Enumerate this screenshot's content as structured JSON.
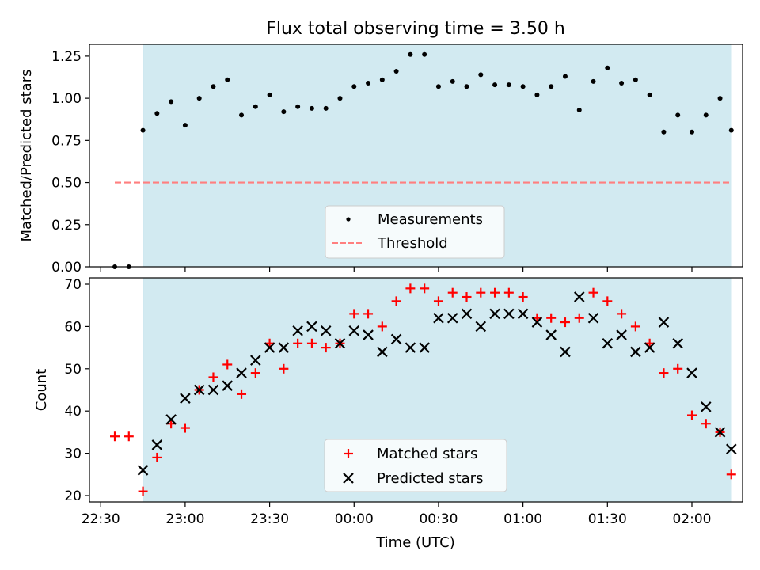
{
  "colors": {
    "observing_band": "#add8e6",
    "measurement": "#000000",
    "threshold": "#ff7f7f",
    "matched": "#ff0000",
    "predicted": "#000000"
  },
  "chart_data": [
    {
      "type": "scatter",
      "title": "Flux total observing time = 3.50 h",
      "xlabel": "",
      "ylabel": "Matched/Predicted stars",
      "xlim": [
        "22:26",
        "02:18"
      ],
      "ylim": [
        0,
        1.32
      ],
      "yticks": [
        "0.00",
        "0.25",
        "0.50",
        "0.75",
        "1.00",
        "1.25"
      ],
      "observing_span": [
        "22:45",
        "02:14"
      ],
      "legend": {
        "position": "lower center",
        "entries": [
          "Measurements",
          "Threshold"
        ]
      },
      "threshold": {
        "name": "Threshold",
        "value": 0.5,
        "x": [
          "22:35",
          "02:14"
        ],
        "style": "dashed"
      },
      "series": [
        {
          "name": "Measurements",
          "marker": "dot",
          "x": [
            "22:35",
            "22:40",
            "22:45",
            "22:50",
            "22:55",
            "23:00",
            "23:05",
            "23:10",
            "23:15",
            "23:20",
            "23:25",
            "23:30",
            "23:35",
            "23:40",
            "23:45",
            "23:50",
            "23:55",
            "00:00",
            "00:05",
            "00:10",
            "00:15",
            "00:20",
            "00:25",
            "00:30",
            "00:35",
            "00:40",
            "00:45",
            "00:50",
            "00:55",
            "01:00",
            "01:05",
            "01:10",
            "01:15",
            "01:20",
            "01:25",
            "01:30",
            "01:35",
            "01:40",
            "01:45",
            "01:50",
            "01:55",
            "02:00",
            "02:05",
            "02:10",
            "02:14"
          ],
          "y": [
            0.0,
            0.0,
            0.81,
            0.91,
            0.98,
            0.84,
            1.0,
            1.07,
            1.11,
            0.9,
            0.95,
            1.02,
            0.92,
            0.95,
            0.94,
            0.94,
            1.0,
            1.07,
            1.09,
            1.11,
            1.16,
            1.26,
            1.26,
            1.07,
            1.1,
            1.07,
            1.14,
            1.08,
            1.08,
            1.07,
            1.02,
            1.07,
            1.13,
            0.93,
            1.1,
            1.18,
            1.09,
            1.11,
            1.02,
            0.8,
            0.9,
            0.8,
            0.9,
            1.0,
            0.81
          ]
        }
      ]
    },
    {
      "type": "scatter",
      "title": "",
      "xlabel": "Time (UTC)",
      "ylabel": "Count",
      "xlim": [
        "22:26",
        "02:18"
      ],
      "ylim": [
        18.5,
        71.5
      ],
      "yticks": [
        "20",
        "30",
        "40",
        "50",
        "60",
        "70"
      ],
      "xticks": [
        "22:30",
        "23:00",
        "23:30",
        "00:00",
        "00:30",
        "01:00",
        "01:30",
        "02:00"
      ],
      "observing_span": [
        "22:45",
        "02:14"
      ],
      "legend": {
        "position": "lower center",
        "entries": [
          "Matched stars",
          "Predicted stars"
        ]
      },
      "series": [
        {
          "name": "Matched stars",
          "marker": "plus",
          "x": [
            "22:35",
            "22:40",
            "22:45",
            "22:50",
            "22:55",
            "23:00",
            "23:05",
            "23:10",
            "23:15",
            "23:20",
            "23:25",
            "23:30",
            "23:35",
            "23:40",
            "23:45",
            "23:50",
            "23:55",
            "00:00",
            "00:05",
            "00:10",
            "00:15",
            "00:20",
            "00:25",
            "00:30",
            "00:35",
            "00:40",
            "00:45",
            "00:50",
            "00:55",
            "01:00",
            "01:05",
            "01:10",
            "01:15",
            "01:20",
            "01:25",
            "01:30",
            "01:35",
            "01:40",
            "01:45",
            "01:50",
            "01:55",
            "02:00",
            "02:05",
            "02:10",
            "02:14"
          ],
          "y": [
            34,
            34,
            21,
            29,
            37,
            36,
            45,
            48,
            51,
            44,
            49,
            56,
            50,
            56,
            56,
            55,
            56,
            63,
            63,
            60,
            66,
            69,
            69,
            66,
            68,
            67,
            68,
            68,
            68,
            67,
            62,
            62,
            61,
            62,
            68,
            66,
            63,
            60,
            56,
            49,
            50,
            39,
            37,
            35,
            25
          ]
        },
        {
          "name": "Predicted stars",
          "marker": "x",
          "x": [
            "22:45",
            "22:50",
            "22:55",
            "23:00",
            "23:05",
            "23:10",
            "23:15",
            "23:20",
            "23:25",
            "23:30",
            "23:35",
            "23:40",
            "23:45",
            "23:50",
            "23:55",
            "00:00",
            "00:05",
            "00:10",
            "00:15",
            "00:20",
            "00:25",
            "00:30",
            "00:35",
            "00:40",
            "00:45",
            "00:50",
            "00:55",
            "01:00",
            "01:05",
            "01:10",
            "01:15",
            "01:20",
            "01:25",
            "01:30",
            "01:35",
            "01:40",
            "01:45",
            "01:50",
            "01:55",
            "02:00",
            "02:05",
            "02:10",
            "02:14"
          ],
          "y": [
            26,
            32,
            38,
            43,
            45,
            45,
            46,
            49,
            52,
            55,
            55,
            59,
            60,
            59,
            56,
            59,
            58,
            54,
            57,
            55,
            55,
            62,
            62,
            63,
            60,
            63,
            63,
            63,
            61,
            58,
            54,
            67,
            62,
            56,
            58,
            54,
            55,
            61,
            56,
            49,
            41,
            35,
            31
          ]
        }
      ]
    }
  ]
}
